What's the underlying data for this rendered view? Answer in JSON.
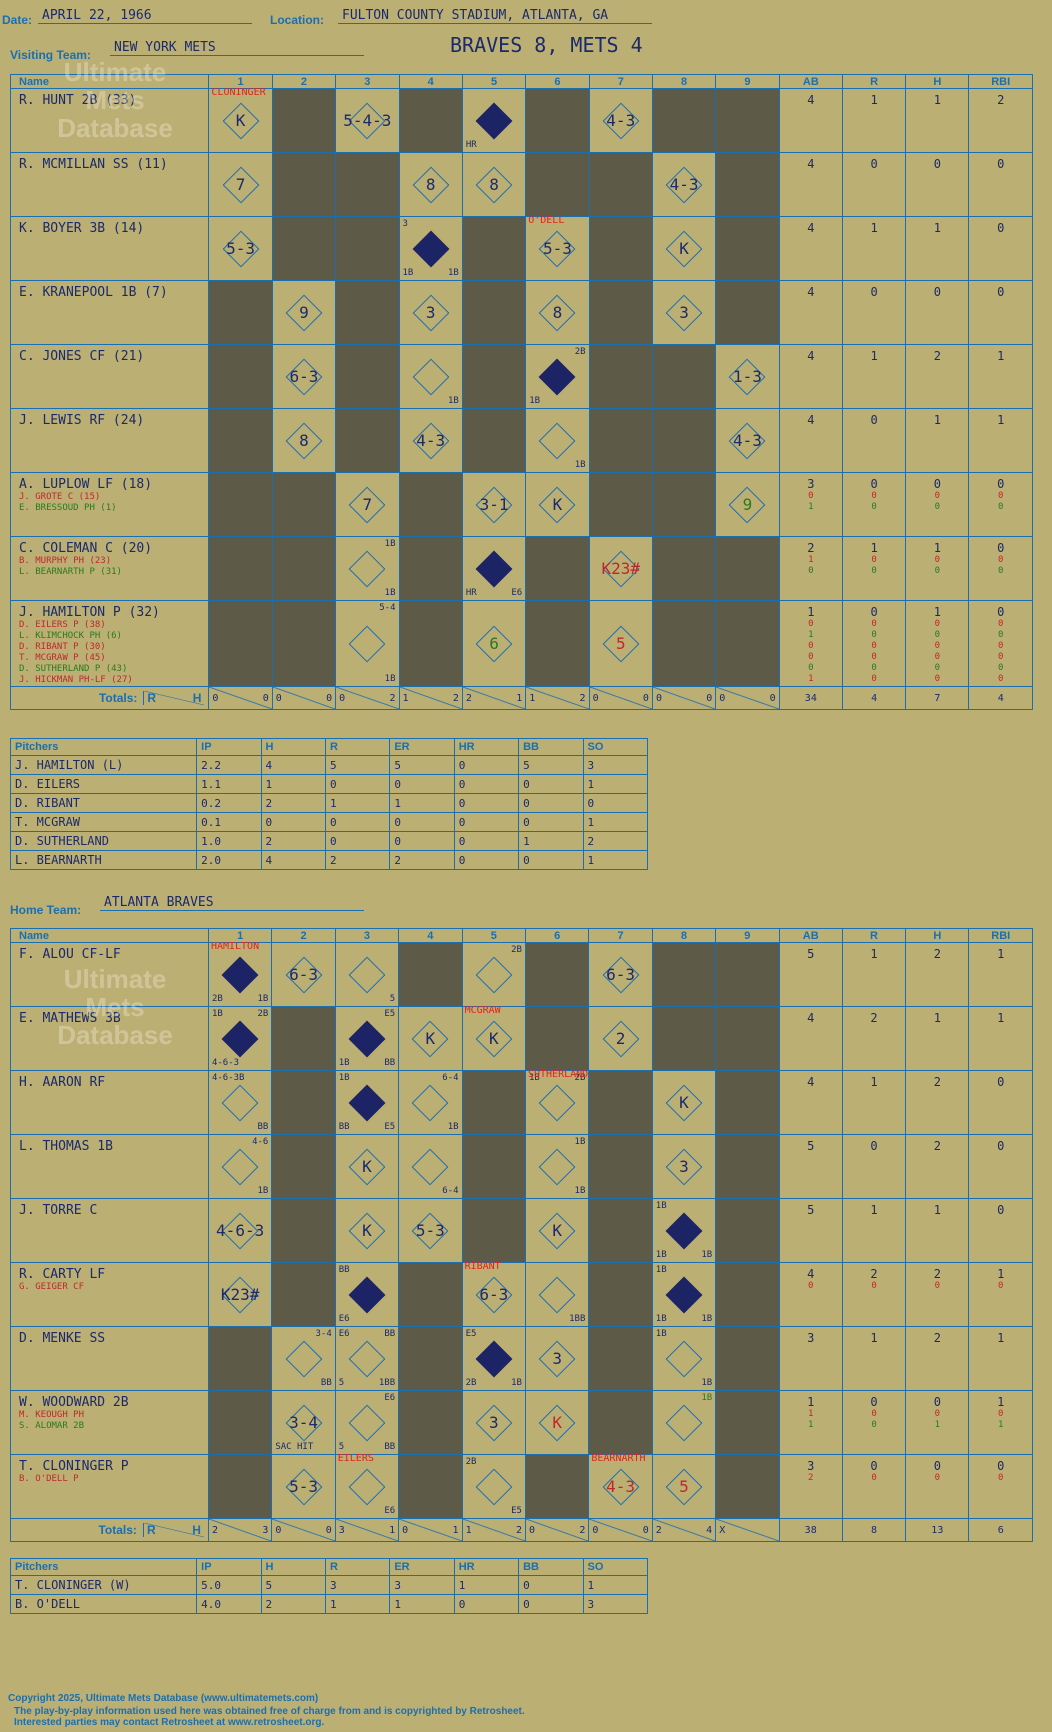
{
  "header": {
    "date_label": "Date:",
    "date": "APRIL 22, 1966",
    "location_label": "Location:",
    "location": "FULTON COUNTY STADIUM, ATLANTA, GA",
    "score_title": "BRAVES 8, METS 4",
    "visiting_label": "Visiting Team:",
    "visiting_team": "NEW YORK METS",
    "home_label": "Home Team:",
    "home_team": "ATLANTA BRAVES"
  },
  "watermark": {
    "line1": "Ultimate",
    "line2": "Mets",
    "line3": "Database",
    "url": "ultimatemets.com"
  },
  "columns": {
    "name": "Name",
    "innings": [
      "1",
      "2",
      "3",
      "4",
      "5",
      "6",
      "7",
      "8",
      "9"
    ],
    "stats": [
      "AB",
      "R",
      "H",
      "RBI"
    ]
  },
  "visitors": {
    "rows": [
      {
        "name": "R. HUNT 2B (33)",
        "subs": [],
        "stats": [
          "4",
          "1",
          "1",
          "2"
        ]
      },
      {
        "name": "R. MCMILLAN SS (11)",
        "subs": [],
        "stats": [
          "4",
          "0",
          "0",
          "0"
        ]
      },
      {
        "name": "K. BOYER 3B (14)",
        "subs": [],
        "stats": [
          "4",
          "1",
          "1",
          "0"
        ]
      },
      {
        "name": "E. KRANEPOOL 1B (7)",
        "subs": [],
        "stats": [
          "4",
          "0",
          "0",
          "0"
        ]
      },
      {
        "name": "C. JONES CF (21)",
        "subs": [],
        "stats": [
          "4",
          "1",
          "2",
          "1"
        ]
      },
      {
        "name": "J. LEWIS RF (24)",
        "subs": [],
        "stats": [
          "4",
          "0",
          "1",
          "1"
        ]
      },
      {
        "name": "A. LUPLOW LF (18)",
        "subs": [
          {
            "t": "J. GROTE C (15)",
            "c": "r"
          },
          {
            "t": "E. BRESSOUD PH (1)",
            "c": "g"
          }
        ],
        "stats": [
          "3",
          "0",
          "0",
          "0"
        ],
        "substats": [
          [
            "0",
            "0",
            "0",
            "0"
          ],
          [
            "1",
            "0",
            "0",
            "0"
          ]
        ]
      },
      {
        "name": "C. COLEMAN C (20)",
        "subs": [
          {
            "t": "B. MURPHY PH (23)",
            "c": "r"
          },
          {
            "t": "L. BEARNARTH P (31)",
            "c": "g"
          }
        ],
        "stats": [
          "2",
          "1",
          "1",
          "0"
        ],
        "substats": [
          [
            "1",
            "0",
            "0",
            "0"
          ],
          [
            "0",
            "0",
            "0",
            "0"
          ]
        ]
      },
      {
        "name": "J. HAMILTON P (32)",
        "subs": [
          {
            "t": "D. EILERS P (38)",
            "c": "r"
          },
          {
            "t": "L. KLIMCHOCK PH (6)",
            "c": "g"
          },
          {
            "t": "D. RIBANT P (30)",
            "c": "r"
          },
          {
            "t": "T. MCGRAW P (45)",
            "c": "r"
          },
          {
            "t": "D. SUTHERLAND P (43)",
            "c": "g"
          },
          {
            "t": "J. HICKMAN PH-LF (27)",
            "c": "r"
          }
        ],
        "stats": [
          "1",
          "0",
          "1",
          "0"
        ],
        "substats": [
          [
            "0",
            "0",
            "0",
            "0"
          ],
          [
            "1",
            "0",
            "0",
            "0"
          ],
          [
            "0",
            "0",
            "0",
            "0"
          ],
          [
            "0",
            "0",
            "0",
            "0"
          ],
          [
            "0",
            "0",
            "0",
            "0"
          ],
          [
            "1",
            "0",
            "0",
            "0"
          ]
        ]
      }
    ],
    "cells": [
      [
        {
          "r": "K",
          "ann": "CLONINGER"
        },
        {
          "dark": true
        },
        {
          "r": "5-4-3"
        },
        {
          "dark": true
        },
        {
          "run": true,
          "bl": "HR"
        },
        {
          "dark": true
        },
        {
          "r": "4-3"
        },
        {
          "dark": true
        },
        {
          "dark": true
        }
      ],
      [
        {
          "r": "7"
        },
        {
          "dark": true
        },
        {
          "dark": true
        },
        {
          "r": "8"
        },
        {
          "r": "8"
        },
        {
          "dark": true
        },
        {
          "dark": true
        },
        {
          "r": "4-3"
        },
        {
          "dark": true
        }
      ],
      [
        {
          "r": "5-3"
        },
        {
          "dark": true
        },
        {
          "dark": true
        },
        {
          "run": true,
          "tl": "3",
          "bl": "1B",
          "br": "1B"
        },
        {
          "dark": true
        },
        {
          "r": "5-3",
          "ann": "O'DELL"
        },
        {
          "dark": true
        },
        {
          "r": "K"
        },
        {
          "dark": true
        }
      ],
      [
        {
          "dark": true
        },
        {
          "r": "9"
        },
        {
          "dark": true
        },
        {
          "r": "3"
        },
        {
          "dark": true
        },
        {
          "r": "8"
        },
        {
          "dark": true
        },
        {
          "r": "3"
        },
        {
          "dark": true
        }
      ],
      [
        {
          "dark": true
        },
        {
          "r": "6-3"
        },
        {
          "dark": true
        },
        {
          "br": "1B"
        },
        {
          "dark": true
        },
        {
          "run": true,
          "tr": "2B",
          "bl": "1B"
        },
        {
          "dark": true
        },
        {
          "dark": true
        },
        {
          "r": "1-3"
        }
      ],
      [
        {
          "dark": true
        },
        {
          "r": "8"
        },
        {
          "dark": true
        },
        {
          "r": "4-3"
        },
        {
          "dark": true
        },
        {
          "br": "1B"
        },
        {
          "dark": true
        },
        {
          "dark": true
        },
        {
          "r": "4-3"
        }
      ],
      [
        {
          "dark": true
        },
        {
          "dark": true
        },
        {
          "r": "7"
        },
        {
          "dark": true
        },
        {
          "r": "3-1"
        },
        {
          "r": "K"
        },
        {
          "dark": true
        },
        {
          "dark": true
        },
        {
          "r": "9",
          "c": "grn"
        }
      ],
      [
        {
          "dark": true
        },
        {
          "dark": true
        },
        {
          "tr": "1B",
          "br": "1B"
        },
        {
          "dark": true
        },
        {
          "run": true,
          "bl": "HR",
          "br": "E6"
        },
        {
          "dark": true
        },
        {
          "r": "K23#",
          "c": "red"
        },
        {
          "dark": true
        },
        {
          "dark": true
        }
      ],
      [
        {
          "dark": true
        },
        {
          "dark": true
        },
        {
          "tr": "5-4",
          "br": "1B"
        },
        {
          "dark": true
        },
        {
          "r": "6",
          "c": "grn"
        },
        {
          "dark": true
        },
        {
          "r": "5",
          "c": "red"
        },
        {
          "dark": true
        },
        {
          "dark": true
        }
      ]
    ],
    "totals": [
      [
        "0",
        "0"
      ],
      [
        "0",
        "0"
      ],
      [
        "0",
        "2"
      ],
      [
        "1",
        "2"
      ],
      [
        "2",
        "1"
      ],
      [
        "1",
        "2"
      ],
      [
        "0",
        "0"
      ],
      [
        "0",
        "0"
      ],
      [
        "0",
        "0"
      ]
    ],
    "total_stats": [
      "34",
      "4",
      "7",
      "4"
    ]
  },
  "visitor_pitchers": {
    "headers": [
      "Pitchers",
      "IP",
      "H",
      "R",
      "ER",
      "HR",
      "BB",
      "SO"
    ],
    "rows": [
      [
        "J. HAMILTON (L)",
        "2.2",
        "4",
        "5",
        "5",
        "0",
        "5",
        "3"
      ],
      [
        "D. EILERS",
        "1.1",
        "1",
        "0",
        "0",
        "0",
        "0",
        "1"
      ],
      [
        "D. RIBANT",
        "0.2",
        "2",
        "1",
        "1",
        "0",
        "0",
        "0"
      ],
      [
        "T. MCGRAW",
        "0.1",
        "0",
        "0",
        "0",
        "0",
        "0",
        "1"
      ],
      [
        "D. SUTHERLAND",
        "1.0",
        "2",
        "0",
        "0",
        "0",
        "1",
        "2"
      ],
      [
        "L. BEARNARTH",
        "2.0",
        "4",
        "2",
        "2",
        "0",
        "0",
        "1"
      ]
    ]
  },
  "home": {
    "rows": [
      {
        "name": "F. ALOU CF-LF",
        "subs": [],
        "stats": [
          "5",
          "1",
          "2",
          "1"
        ]
      },
      {
        "name": "E. MATHEWS 3B",
        "subs": [],
        "stats": [
          "4",
          "2",
          "1",
          "1"
        ]
      },
      {
        "name": "H. AARON RF",
        "subs": [],
        "stats": [
          "4",
          "1",
          "2",
          "0"
        ]
      },
      {
        "name": "L. THOMAS 1B",
        "subs": [],
        "stats": [
          "5",
          "0",
          "2",
          "0"
        ]
      },
      {
        "name": "J. TORRE C",
        "subs": [],
        "stats": [
          "5",
          "1",
          "1",
          "0"
        ]
      },
      {
        "name": "R. CARTY LF",
        "subs": [
          {
            "t": "G. GEIGER CF",
            "c": "r"
          }
        ],
        "stats": [
          "4",
          "2",
          "2",
          "1"
        ],
        "substats": [
          [
            "0",
            "0",
            "0",
            "0"
          ]
        ]
      },
      {
        "name": "D. MENKE SS",
        "subs": [],
        "stats": [
          "3",
          "1",
          "2",
          "1"
        ]
      },
      {
        "name": "W. WOODWARD 2B",
        "subs": [
          {
            "t": "M. KEOUGH PH",
            "c": "r"
          },
          {
            "t": "S. ALOMAR 2B",
            "c": "g"
          }
        ],
        "stats": [
          "1",
          "0",
          "0",
          "1"
        ],
        "substats": [
          [
            "1",
            "0",
            "0",
            "0"
          ],
          [
            "1",
            "0",
            "1",
            "1"
          ]
        ]
      },
      {
        "name": "T. CLONINGER P",
        "subs": [
          {
            "t": "B. O'DELL P",
            "c": "r"
          }
        ],
        "stats": [
          "3",
          "0",
          "0",
          "0"
        ],
        "substats": [
          [
            "2",
            "0",
            "0",
            "0"
          ]
        ]
      }
    ],
    "cells": [
      [
        {
          "run": true,
          "ann": "HAMILTON",
          "bl": "2B",
          "br": "1B"
        },
        {
          "r": "6-3"
        },
        {
          "br": "5"
        },
        {
          "dark": true
        },
        {
          "tr": "2B"
        },
        {
          "dark": true
        },
        {
          "r": "6-3"
        },
        {
          "dark": true
        },
        {
          "dark": true
        }
      ],
      [
        {
          "run": true,
          "tl": "1B",
          "tr": "2B",
          "bl": "4-6-3"
        },
        {
          "dark": true
        },
        {
          "run": true,
          "tr": "E5",
          "bl": "1B",
          "br": "BB"
        },
        {
          "r": "K"
        },
        {
          "r": "K",
          "ann": "MCGRAW"
        },
        {
          "dark": true
        },
        {
          "r": "2"
        },
        {
          "dark": true
        },
        {
          "dark": true
        }
      ],
      [
        {
          "tl": "4-6-3B",
          "br": "BB"
        },
        {
          "dark": true
        },
        {
          "run": true,
          "tl": "1B",
          "bl": "BB",
          "br": "E5"
        },
        {
          "tr": "6-4",
          "br": "1B"
        },
        {
          "dark": true
        },
        {
          "tl": "1B",
          "tr": "2B",
          "ann": "SUTHERLAND"
        },
        {
          "dark": true
        },
        {
          "r": "K"
        },
        {
          "dark": true
        }
      ],
      [
        {
          "tr": "4-6",
          "br": "1B"
        },
        {
          "dark": true
        },
        {
          "r": "K"
        },
        {
          "br": "6-4"
        },
        {
          "dark": true
        },
        {
          "tr": "1B",
          "br": "1B"
        },
        {
          "dark": true
        },
        {
          "r": "3"
        },
        {
          "dark": true
        }
      ],
      [
        {
          "r": "4-6-3"
        },
        {
          "dark": true
        },
        {
          "r": "K"
        },
        {
          "r": "5-3"
        },
        {
          "dark": true
        },
        {
          "r": "K"
        },
        {
          "dark": true
        },
        {
          "run": true,
          "tl": "1B",
          "bl": "1B",
          "br": "1B"
        },
        {
          "dark": true
        }
      ],
      [
        {
          "r": "K23#"
        },
        {
          "dark": true
        },
        {
          "run": true,
          "tl": "BB",
          "bl": "E6"
        },
        {
          "dark": true
        },
        {
          "r": "6-3",
          "ann": "RIBANT"
        },
        {
          "br": "1BB"
        },
        {
          "dark": true
        },
        {
          "run": true,
          "tl": "1B",
          "bl": "1B",
          "br": "1B"
        },
        {
          "dark": true
        }
      ],
      [
        {
          "dark": true
        },
        {
          "tr": "3-4",
          "br": "BB"
        },
        {
          "tl": "E6",
          "tr": "BB",
          "bl": "5",
          "br": "1BB"
        },
        {
          "dark": true
        },
        {
          "run": true,
          "tl": "E5",
          "bl": "2B",
          "br": "1B"
        },
        {
          "r": "3"
        },
        {
          "dark": true
        },
        {
          "tl": "1B",
          "br": "1B"
        },
        {
          "dark": true
        }
      ],
      [
        {
          "dark": true
        },
        {
          "r": "3-4",
          "bl": "SAC HIT"
        },
        {
          "tr": "E6",
          "br": "BB",
          "bl": "5"
        },
        {
          "dark": true
        },
        {
          "r": "3"
        },
        {
          "r": "K",
          "c": "red"
        },
        {
          "dark": true
        },
        {
          "tr": "1B",
          "c": "grn"
        },
        {
          "dark": true
        }
      ],
      [
        {
          "dark": true
        },
        {
          "r": "5-3"
        },
        {
          "br": "E6",
          "ann": "EILERS"
        },
        {
          "dark": true
        },
        {
          "tl": "2B",
          "br": "E5"
        },
        {
          "dark": true
        },
        {
          "r": "4-3",
          "c": "red",
          "ann": "BEARNARTH"
        },
        {
          "r": "5",
          "c": "red"
        },
        {
          "dark": true
        }
      ]
    ],
    "totals": [
      [
        "2",
        "3"
      ],
      [
        "0",
        "0"
      ],
      [
        "3",
        "1"
      ],
      [
        "0",
        "1"
      ],
      [
        "1",
        "2"
      ],
      [
        "0",
        "2"
      ],
      [
        "0",
        "0"
      ],
      [
        "2",
        "4"
      ],
      [
        "X",
        ""
      ]
    ],
    "total_stats": [
      "38",
      "8",
      "13",
      "6"
    ]
  },
  "home_pitchers": {
    "headers": [
      "Pitchers",
      "IP",
      "H",
      "R",
      "ER",
      "HR",
      "BB",
      "SO"
    ],
    "rows": [
      [
        "T. CLONINGER (W)",
        "5.0",
        "5",
        "3",
        "3",
        "1",
        "0",
        "1"
      ],
      [
        "B. O'DELL",
        "4.0",
        "2",
        "1",
        "1",
        "0",
        "0",
        "3"
      ]
    ]
  },
  "totals_label": "Totals:",
  "rh_labels": {
    "r": "R",
    "h": "H"
  },
  "footer": {
    "line1": "Copyright 2025, Ultimate Mets Database (www.ultimatemets.com)",
    "line2": "The play-by-play information used here was obtained free of charge from and is copyrighted by Retrosheet.",
    "line3": "Interested parties may contact Retrosheet at www.retrosheet.org."
  },
  "colors": {
    "background": "#bcaf74",
    "grid": "#1a6fb0",
    "dark_cell": "#5e5a48",
    "runner": "#1c2466",
    "annotation_red": "#e2231a"
  }
}
